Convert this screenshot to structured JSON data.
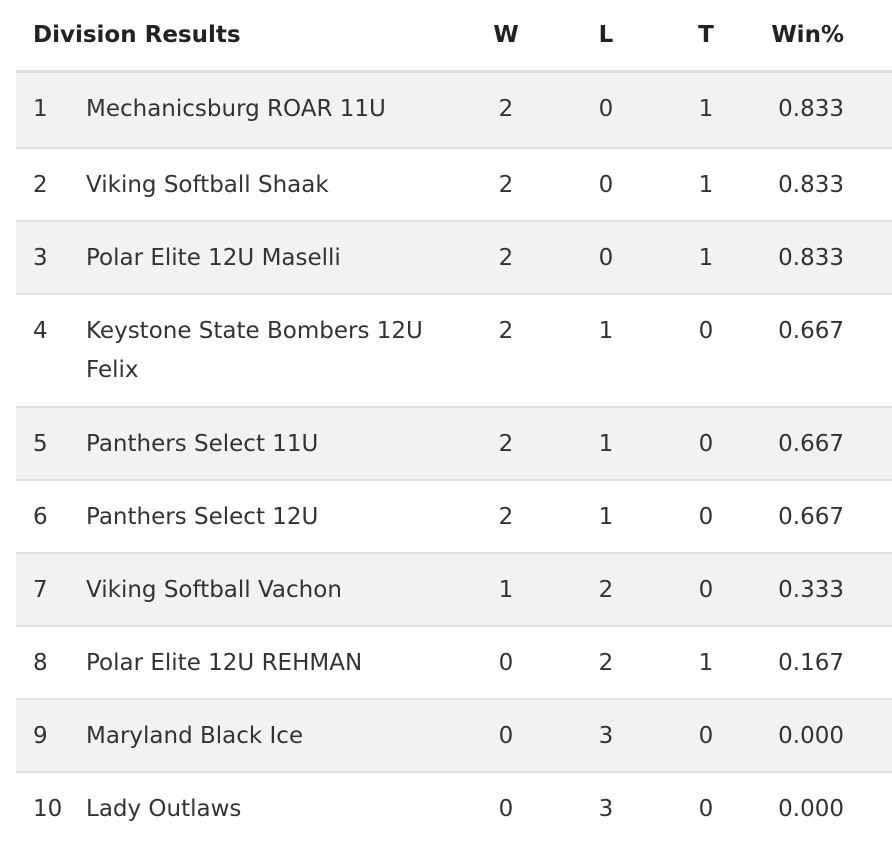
{
  "table": {
    "title": "Division Results",
    "columns": {
      "w": "W",
      "l": "L",
      "t": "T",
      "pct": "Win%"
    },
    "rows": [
      {
        "rank": "1",
        "team": "Mechanicsburg ROAR 11U",
        "w": "2",
        "l": "0",
        "t": "1",
        "pct": "0.833"
      },
      {
        "rank": "2",
        "team": "Viking Softball Shaak",
        "w": "2",
        "l": "0",
        "t": "1",
        "pct": "0.833"
      },
      {
        "rank": "3",
        "team": "Polar Elite 12U Maselli",
        "w": "2",
        "l": "0",
        "t": "1",
        "pct": "0.833"
      },
      {
        "rank": "4",
        "team": "Keystone State Bombers 12U Felix",
        "w": "2",
        "l": "1",
        "t": "0",
        "pct": "0.667"
      },
      {
        "rank": "5",
        "team": "Panthers Select 11U",
        "w": "2",
        "l": "1",
        "t": "0",
        "pct": "0.667"
      },
      {
        "rank": "6",
        "team": "Panthers Select 12U",
        "w": "2",
        "l": "1",
        "t": "0",
        "pct": "0.667"
      },
      {
        "rank": "7",
        "team": "Viking Softball Vachon",
        "w": "1",
        "l": "2",
        "t": "0",
        "pct": "0.333"
      },
      {
        "rank": "8",
        "team": "Polar Elite 12U REHMAN",
        "w": "0",
        "l": "2",
        "t": "1",
        "pct": "0.167"
      },
      {
        "rank": "9",
        "team": "Maryland Black Ice",
        "w": "0",
        "l": "3",
        "t": "0",
        "pct": "0.000"
      },
      {
        "rank": "10",
        "team": "Lady Outlaws",
        "w": "0",
        "l": "3",
        "t": "0",
        "pct": "0.000"
      }
    ]
  }
}
